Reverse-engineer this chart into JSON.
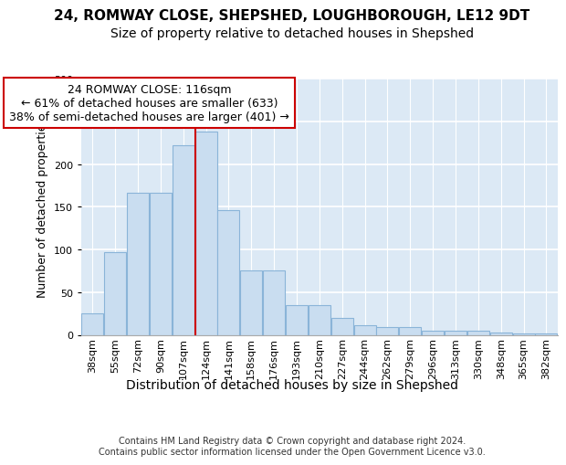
{
  "title_line1": "24, ROMWAY CLOSE, SHEPSHED, LOUGHBOROUGH, LE12 9DT",
  "title_line2": "Size of property relative to detached houses in Shepshed",
  "xlabel": "Distribution of detached houses by size in Shepshed",
  "ylabel": "Number of detached properties",
  "bar_labels": [
    "38sqm",
    "55sqm",
    "72sqm",
    "90sqm",
    "107sqm",
    "124sqm",
    "141sqm",
    "158sqm",
    "176sqm",
    "193sqm",
    "210sqm",
    "227sqm",
    "244sqm",
    "262sqm",
    "279sqm",
    "296sqm",
    "313sqm",
    "330sqm",
    "348sqm",
    "365sqm",
    "382sqm"
  ],
  "bar_values": [
    25,
    97,
    167,
    167,
    222,
    238,
    146,
    76,
    76,
    35,
    35,
    20,
    11,
    9,
    9,
    5,
    5,
    5,
    3,
    2,
    2
  ],
  "bar_color": "#c9ddf0",
  "bar_edgecolor": "#8ab4d8",
  "vline_color": "#cc0000",
  "annotation_text": "24 ROMWAY CLOSE: 116sqm\n← 61% of detached houses are smaller (633)\n38% of semi-detached houses are larger (401) →",
  "annotation_box_facecolor": "white",
  "annotation_box_edgecolor": "#cc0000",
  "ylim": [
    0,
    300
  ],
  "yticks": [
    0,
    50,
    100,
    150,
    200,
    250,
    300
  ],
  "plot_bg_color": "#dce9f5",
  "footer_text": "Contains HM Land Registry data © Crown copyright and database right 2024.\nContains public sector information licensed under the Open Government Licence v3.0.",
  "title1_fontsize": 11,
  "title2_fontsize": 10,
  "xlabel_fontsize": 10,
  "ylabel_fontsize": 9,
  "tick_fontsize": 8,
  "annot_fontsize": 9
}
